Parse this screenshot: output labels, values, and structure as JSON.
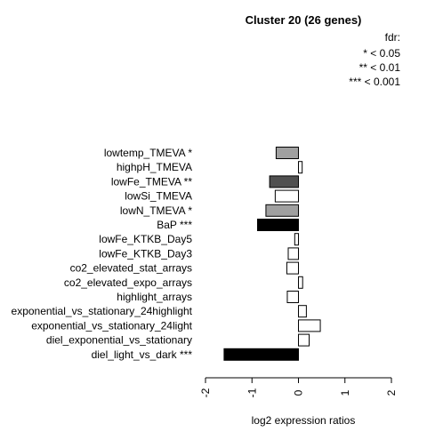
{
  "chart_data": {
    "type": "bar",
    "orientation": "horizontal",
    "title": "Cluster 20 (26 genes)",
    "xlabel": "log2 expression ratios",
    "ylabel": "",
    "xlim": [
      -2,
      2
    ],
    "x_ticks": [
      "-2",
      "-1",
      "0",
      "1",
      "2"
    ],
    "legend": {
      "title": "fdr:",
      "entries": [
        "* < 0.05",
        "** < 0.01",
        "*** < 0.001"
      ],
      "placement": "top-right"
    },
    "categories": [
      "lowtemp_TMEVA *",
      "highpH_TMEVA",
      "lowFe_TMEVA **",
      "lowSi_TMEVA",
      "lowN_TMEVA *",
      "BaP ***",
      "lowFe_KTKB_Day5",
      "lowFe_KTKB_Day3",
      "co2_elevated_stat_arrays",
      "co2_elevated_expo_arrays",
      "highlight_arrays",
      "exponential_vs_stationary_24highlight",
      "exponential_vs_stationary_24light",
      "diel_exponential_vs_stationary",
      "diel_light_vs_dark ***"
    ],
    "values": [
      -0.48,
      0.08,
      -0.62,
      -0.5,
      -0.7,
      -0.88,
      -0.08,
      -0.22,
      -0.25,
      0.09,
      -0.24,
      0.17,
      0.47,
      0.23,
      -1.6
    ],
    "bar_colors": [
      "#a0a0a0",
      "#ffffff",
      "#505050",
      "#ffffff",
      "#a0a0a0",
      "#000000",
      "#ffffff",
      "#ffffff",
      "#ffffff",
      "#ffffff",
      "#ffffff",
      "#ffffff",
      "#ffffff",
      "#ffffff",
      "#000000"
    ]
  }
}
